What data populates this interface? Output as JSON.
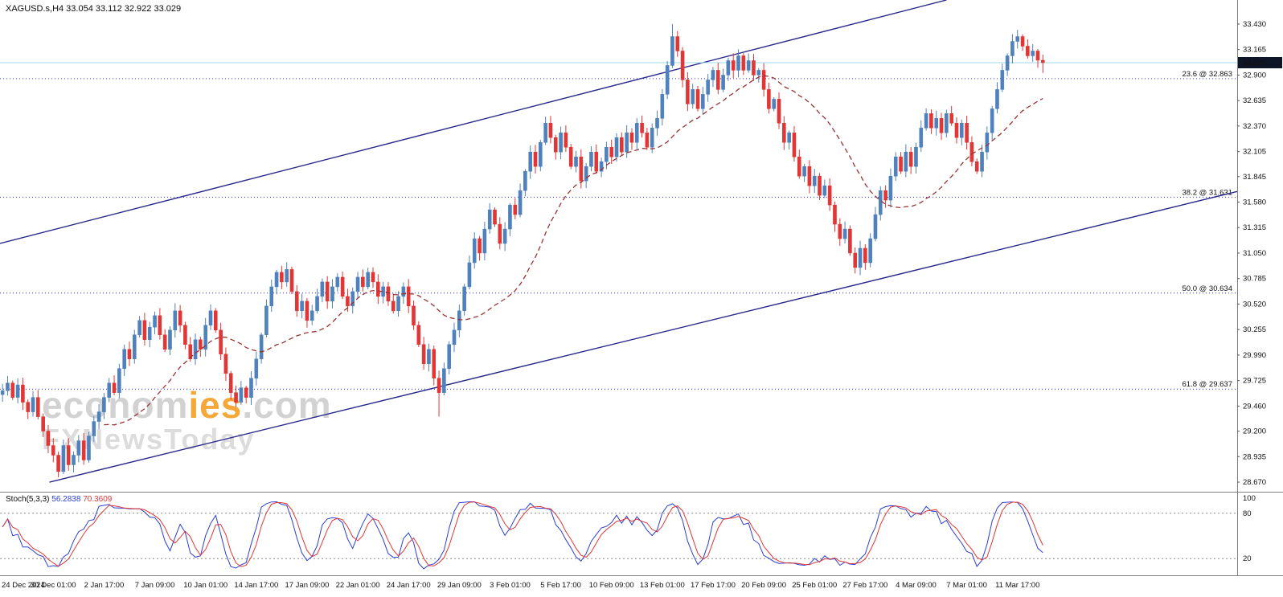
{
  "header": {
    "symbol_info": "XAGUSD.s,H4 33.054 33.112 32.922 33.029"
  },
  "watermark": {
    "part1": "econom",
    "part2": "ies",
    "part3": ".com",
    "line2": "FXNewsToday"
  },
  "price_axis": {
    "current_price": "33.029"
  },
  "chart_data": {
    "type": "candlestick",
    "symbol": "XAGUSD.s",
    "timeframe": "H4",
    "title": "XAGUSD.s,H4",
    "ohlc": {
      "open": 33.054,
      "high": 33.112,
      "low": 32.922,
      "close": 33.029
    },
    "ylim": [
      28.57,
      33.68
    ],
    "y_ticks": [
      "33.430",
      "33.165",
      "32.900",
      "32.635",
      "32.370",
      "32.105",
      "31.845",
      "31.580",
      "31.315",
      "31.050",
      "30.785",
      "30.520",
      "30.255",
      "29.990",
      "29.725",
      "29.460",
      "29.200",
      "28.935",
      "28.670"
    ],
    "x_labels": [
      "24 Dec 2024",
      "30 Dec 01:00",
      "2 Jan 17:00",
      "7 Jan 09:00",
      "10 Jan 01:00",
      "14 Jan 17:00",
      "17 Jan 09:00",
      "22 Jan 01:00",
      "24 Jan 17:00",
      "29 Jan 09:00",
      "3 Feb 01:00",
      "5 Feb 17:00",
      "10 Feb 09:00",
      "13 Feb 01:00",
      "17 Feb 17:00",
      "20 Feb 09:00",
      "25 Feb 01:00",
      "27 Feb 17:00",
      "4 Mar 09:00",
      "7 Mar 01:00",
      "11 Mar 17:00"
    ],
    "fib_levels": [
      {
        "label": "23.6 @ 32.863",
        "price": 32.863
      },
      {
        "label": "38.2 @ 31.631",
        "price": 31.631
      },
      {
        "label": "50.0 @ 30.634",
        "price": 30.634
      },
      {
        "label": "61.8 @ 29.637",
        "price": 29.637
      }
    ],
    "channel": {
      "upper": [
        [
          0.0,
          31.15
        ],
        [
          0.765,
          33.68
        ]
      ],
      "lower": [
        [
          0.04,
          28.67
        ],
        [
          1.0,
          31.69
        ]
      ]
    },
    "current_price": 33.029,
    "candles_x_extent": 0.845,
    "ma_window": 21,
    "spikes": [
      {
        "i": 11,
        "low": 28.72
      },
      {
        "i": 86,
        "low": 29.35
      },
      {
        "i": 132,
        "high": 33.43
      },
      {
        "i": 205,
        "high": 33.112,
        "low": 32.922
      }
    ],
    "closes": [
      29.62,
      29.7,
      29.55,
      29.68,
      29.5,
      29.4,
      29.55,
      29.35,
      29.2,
      29.05,
      28.95,
      28.78,
      29.05,
      28.85,
      28.95,
      29.1,
      28.9,
      29.15,
      29.3,
      29.4,
      29.55,
      29.7,
      29.6,
      29.85,
      30.05,
      29.95,
      30.2,
      30.35,
      30.15,
      30.28,
      30.4,
      30.2,
      30.05,
      30.25,
      30.45,
      30.3,
      30.1,
      29.95,
      30.15,
      30.05,
      30.3,
      30.45,
      30.25,
      30.0,
      29.8,
      29.6,
      29.5,
      29.65,
      29.55,
      29.75,
      29.95,
      30.2,
      30.5,
      30.7,
      30.85,
      30.75,
      30.88,
      30.65,
      30.45,
      30.55,
      30.35,
      30.45,
      30.6,
      30.75,
      30.55,
      30.7,
      30.8,
      30.6,
      30.5,
      30.65,
      30.8,
      30.7,
      30.85,
      30.75,
      30.6,
      30.7,
      30.55,
      30.45,
      30.6,
      30.7,
      30.5,
      30.3,
      30.1,
      29.9,
      30.05,
      29.75,
      29.6,
      29.85,
      30.1,
      30.25,
      30.45,
      30.7,
      30.95,
      31.2,
      31.05,
      31.3,
      31.5,
      31.35,
      31.15,
      31.3,
      31.55,
      31.45,
      31.7,
      31.9,
      32.1,
      31.95,
      32.2,
      32.4,
      32.25,
      32.1,
      32.3,
      32.15,
      31.95,
      32.05,
      31.8,
      31.95,
      32.1,
      31.9,
      32.0,
      32.15,
      32.05,
      32.25,
      32.1,
      32.3,
      32.2,
      32.4,
      32.3,
      32.15,
      32.35,
      32.45,
      32.7,
      33.0,
      33.3,
      33.15,
      32.85,
      32.6,
      32.75,
      32.55,
      32.7,
      32.85,
      32.95,
      32.75,
      32.9,
      33.05,
      32.95,
      33.1,
      32.95,
      33.05,
      32.9,
      32.95,
      32.75,
      32.55,
      32.65,
      32.4,
      32.2,
      32.3,
      32.05,
      31.85,
      31.95,
      31.75,
      31.85,
      31.65,
      31.75,
      31.55,
      31.35,
      31.2,
      31.3,
      31.05,
      30.9,
      31.1,
      30.95,
      31.2,
      31.45,
      31.7,
      31.6,
      31.85,
      32.05,
      31.9,
      32.1,
      31.95,
      32.15,
      32.35,
      32.5,
      32.35,
      32.45,
      32.3,
      32.5,
      32.4,
      32.25,
      32.4,
      32.2,
      32.0,
      31.9,
      32.1,
      32.3,
      32.55,
      32.75,
      32.95,
      33.1,
      33.25,
      33.3,
      33.2,
      33.1,
      33.15,
      33.054,
      33.029
    ],
    "colors": {
      "up": "#4f81bd",
      "down": "#e03636",
      "ma": "#993333",
      "fib": "#2d2dc8",
      "channel": "#28288c",
      "current": "#9fd7e8",
      "badge_bg": "#0e1526"
    }
  },
  "stoch": {
    "name": "Stoch(5,3,3)",
    "value1": "56.2838",
    "value2": "70.3609",
    "levels": [
      100,
      80,
      20
    ],
    "dotted_levels": [
      80,
      20
    ],
    "k_color": "#2a3fd4",
    "d_color": "#e03636"
  }
}
